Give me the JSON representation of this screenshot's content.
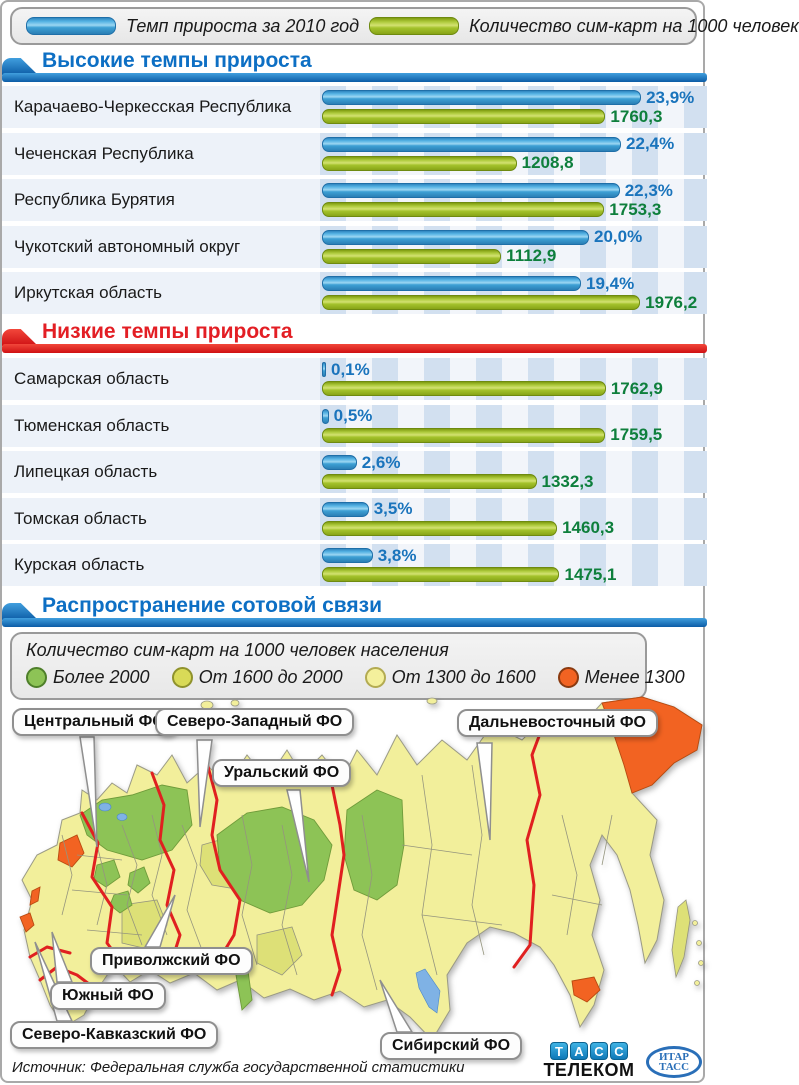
{
  "colors": {
    "accent_blue": "#1a74bc",
    "accent_green": "#0e7f3c",
    "header_blue": "#0d6fc4",
    "header_red": "#e31e24",
    "bar_blue": "#3da0d4",
    "bar_green": "#a4c32c",
    "map_orange": "#f26322",
    "district_border_red": "#e02020"
  },
  "legend": {
    "items": [
      {
        "swatch": "blue-bar",
        "label": "Темп прироста за 2010 год"
      },
      {
        "swatch": "green-bar",
        "label": "Количество сим-карт на 1000 человек"
      }
    ]
  },
  "chart_data": [
    {
      "type": "bar",
      "orientation": "horizontal",
      "title": "Высокие темпы прироста",
      "categories": [
        "Карачаево-Черкесская Республика",
        "Чеченская Республика",
        "Республика Бурятия",
        "Чукотский автономный округ",
        "Иркутская область"
      ],
      "series": [
        {
          "name": "Темп прироста за 2010 год",
          "unit": "%",
          "values": [
            23.9,
            22.4,
            22.3,
            20.0,
            19.4
          ],
          "labels": [
            "23,9%",
            "22,4%",
            "22,3%",
            "20,0%",
            "19,4%"
          ]
        },
        {
          "name": "Количество сим-карт на 1000 человек",
          "unit": "сим-карт на 1000 человек",
          "values": [
            1760.3,
            1208.8,
            1753.3,
            1112.9,
            1976.2
          ],
          "labels": [
            "1760,3",
            "1208,8",
            "1753,3",
            "1112,9",
            "1976,2"
          ]
        }
      ]
    },
    {
      "type": "bar",
      "orientation": "horizontal",
      "title": "Низкие темпы прироста",
      "categories": [
        "Самарская область",
        "Тюменская область",
        "Липецкая область",
        "Томская область",
        "Курская область"
      ],
      "series": [
        {
          "name": "Темп прироста за 2010 год",
          "unit": "%",
          "values": [
            0.1,
            0.5,
            2.6,
            3.5,
            3.8
          ],
          "labels": [
            "0,1%",
            "0,5%",
            "2,6%",
            "3,5%",
            "3,8%"
          ]
        },
        {
          "name": "Количество сим-карт на 1000 человек",
          "unit": "сим-карт на 1000 человек",
          "values": [
            1762.9,
            1759.5,
            1332.3,
            1460.3,
            1475.1
          ],
          "labels": [
            "1762,9",
            "1759,5",
            "1332,3",
            "1460,3",
            "1475,1"
          ]
        }
      ]
    }
  ],
  "map": {
    "section_title": "Распространение сотовой связи",
    "legend_title": "Количество сим-карт на 1000 человек населения",
    "legend_classes": [
      {
        "label": "Более 2000",
        "color": "#8dc356"
      },
      {
        "label": "От 1600 до 2000",
        "color": "#d9da57"
      },
      {
        "label": "От 1300 до 1600",
        "color": "#f4f09c"
      },
      {
        "label": "Менее 1300",
        "color": "#f26322"
      }
    ],
    "districts": [
      {
        "name": "Центральный ФО"
      },
      {
        "name": "Северо-Западный ФО"
      },
      {
        "name": "Уральский ФО"
      },
      {
        "name": "Дальневосточный ФО"
      },
      {
        "name": "Приволжский ФО"
      },
      {
        "name": "Южный ФО"
      },
      {
        "name": "Северо-Кавказский ФО"
      },
      {
        "name": "Сибирский ФО"
      }
    ]
  },
  "footer": {
    "source": "Источник: Федеральная служба государственной статистики",
    "tass_telecom": {
      "letters": [
        "Т",
        "А",
        "С",
        "С"
      ],
      "word": "Телеком"
    },
    "itar_tass": {
      "line1": "ИТАР",
      "line2": "ТАСС"
    }
  }
}
